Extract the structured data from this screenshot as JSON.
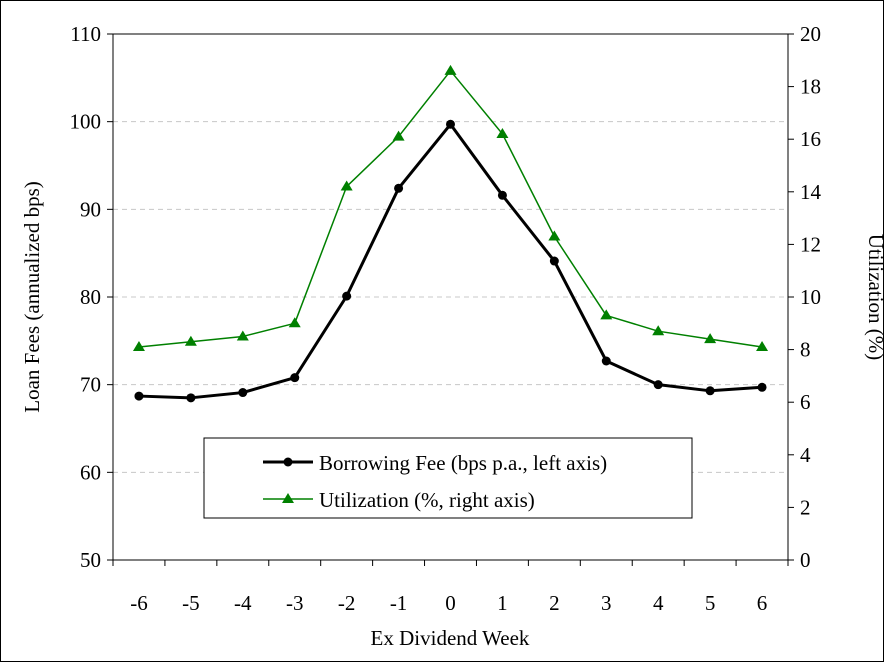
{
  "chart_data": {
    "type": "line",
    "title": "",
    "xlabel": "Ex Dividend Week",
    "ylabel": "Loan Fees (annualized bps)",
    "y2label": "Utilization (%)",
    "categories": [
      "-6",
      "-5",
      "-4",
      "-3",
      "-2",
      "-1",
      "0",
      "1",
      "2",
      "3",
      "4",
      "5",
      "6"
    ],
    "ylim": [
      50,
      110
    ],
    "yticks": [
      "50",
      "60",
      "70",
      "80",
      "90",
      "100",
      "110"
    ],
    "y2lim": [
      0,
      20
    ],
    "y2ticks": [
      "0",
      "2",
      "4",
      "6",
      "8",
      "10",
      "12",
      "14",
      "16",
      "18",
      "20"
    ],
    "grid": "horizontal dashed",
    "legend_position": "bottom-center",
    "series": [
      {
        "name": "Borrowing Fee (bps p.a., left axis)",
        "axis": "left",
        "marker": "circle",
        "color": "#000000",
        "values": [
          68.7,
          68.5,
          69.1,
          70.8,
          80.1,
          92.4,
          99.7,
          91.6,
          84.1,
          72.7,
          70.0,
          69.3,
          69.7
        ]
      },
      {
        "name": "Utilization (%, right axis)",
        "axis": "right",
        "marker": "triangle",
        "color": "#008000",
        "values": [
          8.1,
          8.3,
          8.5,
          9.0,
          14.2,
          16.1,
          18.6,
          16.2,
          12.3,
          9.3,
          8.7,
          8.4,
          8.1
        ]
      }
    ]
  }
}
